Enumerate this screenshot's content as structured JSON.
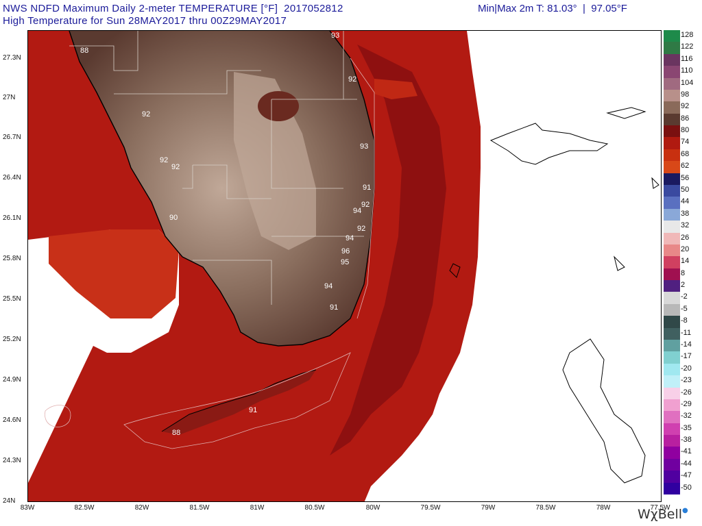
{
  "header": {
    "line1": "NWS NDFD Maximum Daily 2-meter TEMPERATURE [°F]  2017052812",
    "line2": "High Temperature for Sun 28MAY2017 thru 00Z29MAY2017",
    "minmax": "Min|Max 2m T: 81.03°  |  97.05°F"
  },
  "axes": {
    "lat_labels": [
      "27.3N",
      "27N",
      "26.7N",
      "26.4N",
      "26.1N",
      "25.8N",
      "25.5N",
      "25.2N",
      "24.9N",
      "24.6N",
      "24.3N",
      "24N"
    ],
    "lon_labels": [
      "83W",
      "82.5W",
      "82W",
      "81.5W",
      "81W",
      "80.5W",
      "80W",
      "79.5W",
      "79W",
      "78.5W",
      "78W",
      "77.5W"
    ]
  },
  "colorbar": {
    "labels": [
      "128",
      "122",
      "116",
      "110",
      "104",
      "98",
      "92",
      "86",
      "80",
      "74",
      "68",
      "62",
      "56",
      "50",
      "44",
      "38",
      "32",
      "26",
      "20",
      "14",
      "8",
      "2",
      "-2",
      "-5",
      "-8",
      "-11",
      "-14",
      "-17",
      "-20",
      "-23",
      "-26",
      "-29",
      "-32",
      "-35",
      "-38",
      "-41",
      "-44",
      "-47",
      "-50"
    ],
    "colors": [
      "#1e8a4a",
      "#2f7a45",
      "#6a3560",
      "#8a4672",
      "#a06a80",
      "#b8908a",
      "#8a6a5a",
      "#5a3a30",
      "#7a1010",
      "#b01a10",
      "#c83010",
      "#d84818",
      "#1a1a60",
      "#3a4aa0",
      "#5a70c0",
      "#8aa8d8",
      "#e8e8e8",
      "#f0b8b8",
      "#e88888",
      "#d04060",
      "#a01050",
      "#502080",
      "#d8d8d8",
      "#b8b8b8",
      "#304848",
      "#406060",
      "#60a0a0",
      "#80d0d0",
      "#a0e8f0",
      "#c0f0f8",
      "#f8d0e8",
      "#f0a0d0",
      "#e070c0",
      "#d040b0",
      "#b820a0",
      "#9000a0",
      "#7000a0",
      "#5000a0",
      "#3000a0"
    ]
  },
  "temp_labels": [
    {
      "v": "88"
    },
    {
      "v": "93"
    },
    {
      "v": "92"
    },
    {
      "v": "92"
    },
    {
      "v": "93"
    },
    {
      "v": "92"
    },
    {
      "v": "92"
    },
    {
      "v": "91"
    },
    {
      "v": "92"
    },
    {
      "v": "94"
    },
    {
      "v": "90"
    },
    {
      "v": "92"
    },
    {
      "v": "94"
    },
    {
      "v": "96"
    },
    {
      "v": "95"
    },
    {
      "v": "94"
    },
    {
      "v": "91"
    },
    {
      "v": "91"
    },
    {
      "v": "88"
    }
  ],
  "brand": "WχBell"
}
